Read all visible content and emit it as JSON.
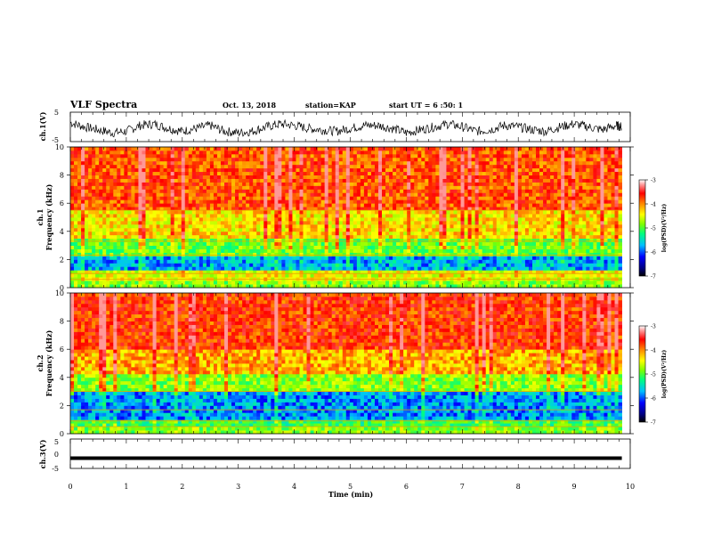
{
  "header": {
    "title": "VLF Spectra",
    "date": "Oct. 13, 2018",
    "station": "station=KAP",
    "start_ut": "start UT = 6 :50: 1"
  },
  "colors": {
    "background": "#ffffff",
    "axis": "#000000",
    "waveform": "#000000",
    "colormap": [
      "#00007f",
      "#0000ff",
      "#00bfff",
      "#00ff7f",
      "#7fff00",
      "#ffff00",
      "#ff7f00",
      "#ff0000",
      "#ff9999",
      "#ffffff"
    ]
  },
  "chart_data": [
    {
      "type": "line",
      "panel": "ch1-waveform",
      "ylabel": "ch.1(V)",
      "ylim": [
        -5,
        5
      ],
      "yticks": [
        "5",
        "-5"
      ],
      "x": [
        0,
        0.25,
        0.5,
        0.75,
        1.0,
        1.25,
        1.5,
        1.75,
        2.0,
        2.25,
        2.5,
        2.75,
        3.0,
        3.25,
        3.5,
        3.75,
        4.0,
        4.25,
        4.5,
        4.75,
        5.0,
        5.25,
        5.5,
        5.75,
        6.0,
        6.25,
        6.5,
        6.75,
        7.0,
        7.25,
        7.5,
        7.75,
        8.0,
        8.25,
        8.5,
        8.75,
        9.0,
        9.25,
        9.5,
        9.75,
        9.85
      ],
      "values": [
        1.5,
        0.0,
        -1.0,
        -2.0,
        -1.5,
        0.5,
        1.0,
        -0.5,
        -1.5,
        -0.5,
        0.5,
        -1.5,
        -2.0,
        -1.5,
        0.0,
        1.0,
        0.5,
        -0.5,
        -1.0,
        -1.5,
        -0.5,
        0.5,
        0.5,
        -0.5,
        -2.0,
        -1.0,
        0.0,
        1.0,
        0.0,
        -1.5,
        -1.0,
        0.5,
        0.0,
        -1.0,
        -1.5,
        0.0,
        1.0,
        0.0,
        -1.0,
        0.5,
        0.0
      ]
    },
    {
      "type": "heatmap",
      "panel": "ch1-spectrogram",
      "ylabel": "ch.1\nFrequency (kHz)",
      "ylim": [
        0,
        10
      ],
      "yticks": [
        "0",
        "2",
        "4",
        "6",
        "8",
        "10"
      ],
      "zlim": [
        -7,
        -3
      ],
      "colorbar_label": "log(PSD)(V²/Hz)",
      "colorbar_ticks": [
        "-3",
        "-4",
        "-5",
        "-6",
        "-7"
      ],
      "bands": [
        {
          "f_range": [
            0,
            0.4
          ],
          "level": -5.0
        },
        {
          "f_range": [
            0.4,
            1.2
          ],
          "level": -4.6
        },
        {
          "f_range": [
            1.2,
            2.3
          ],
          "level": -6.0
        },
        {
          "f_range": [
            2.3,
            3.6
          ],
          "level": -5.1
        },
        {
          "f_range": [
            3.6,
            5.5
          ],
          "level": -4.4
        },
        {
          "f_range": [
            5.5,
            10
          ],
          "level": -3.8
        }
      ],
      "lines_khz": [
        0.6,
        1.0,
        2.3,
        3.3,
        5.5
      ]
    },
    {
      "type": "heatmap",
      "panel": "ch2-spectrogram",
      "ylabel": "ch.2\nFrequency (kHz)",
      "ylim": [
        0,
        10
      ],
      "yticks": [
        "0",
        "2",
        "4",
        "6",
        "8",
        "10"
      ],
      "zlim": [
        -7,
        -3
      ],
      "colorbar_label": "log(PSD)(V²/Hz)",
      "colorbar_ticks": [
        "-3",
        "-4",
        "-5",
        "-6",
        "-7"
      ],
      "bands": [
        {
          "f_range": [
            0,
            0.5
          ],
          "level": -5.0
        },
        {
          "f_range": [
            0.5,
            1.0
          ],
          "level": -5.3
        },
        {
          "f_range": [
            1.0,
            3.0
          ],
          "level": -6.1
        },
        {
          "f_range": [
            3.0,
            4.2
          ],
          "level": -5.0
        },
        {
          "f_range": [
            4.2,
            6.0
          ],
          "level": -4.2
        },
        {
          "f_range": [
            6.0,
            10
          ],
          "level": -3.7
        }
      ],
      "lines_khz": [
        0.5,
        0.9,
        1.7,
        3.0
      ]
    },
    {
      "type": "line",
      "panel": "ch3-waveform",
      "ylabel": "ch.3(V)",
      "ylim": [
        -5,
        5
      ],
      "yticks": [
        "5",
        "0",
        "-5"
      ],
      "x": [
        0,
        9.85
      ],
      "values": [
        -1.5,
        -1.5
      ]
    }
  ],
  "xaxis": {
    "label": "Time (min)",
    "xlim": [
      0,
      10
    ],
    "ticks": [
      "0",
      "1",
      "2",
      "3",
      "4",
      "5",
      "6",
      "7",
      "8",
      "9",
      "10"
    ]
  }
}
